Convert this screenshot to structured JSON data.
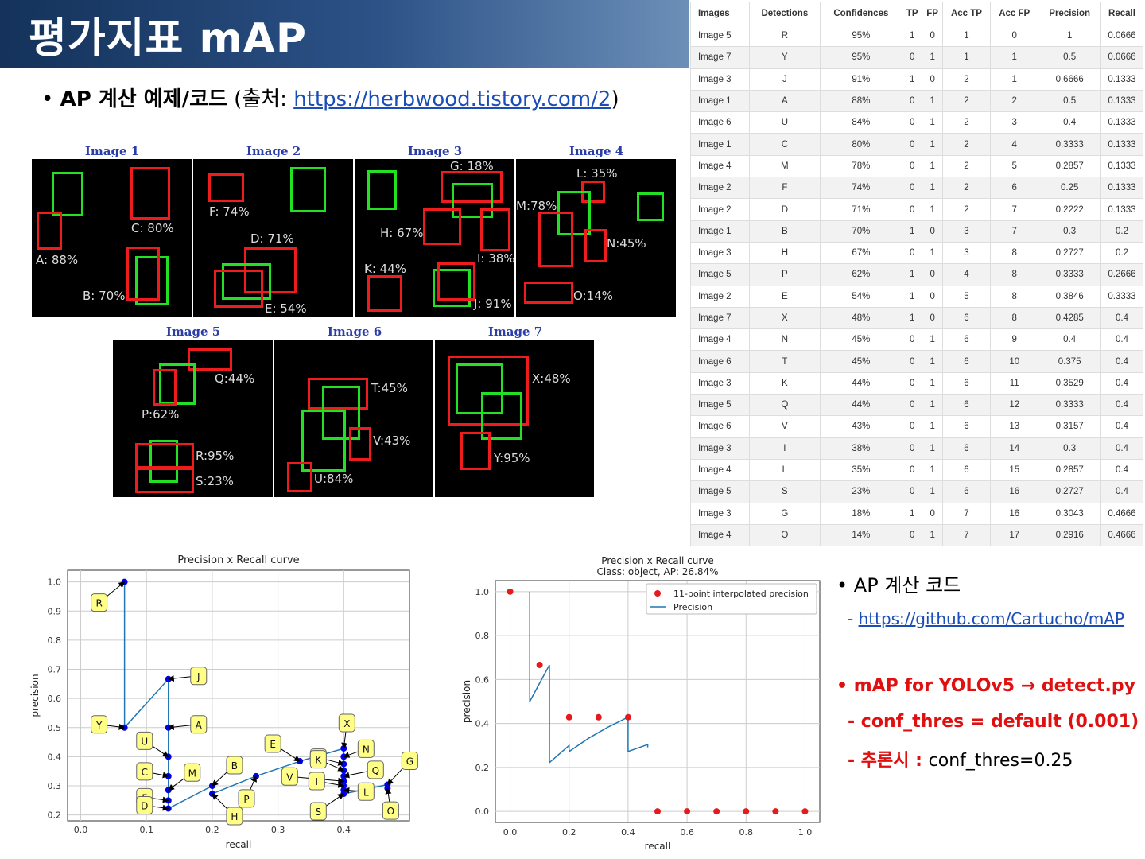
{
  "slide": {
    "title": "평가지표 mAP",
    "bullet1": {
      "bullet": "•",
      "bold": "AP 계산 예제/코드",
      "pre": " (출처: ",
      "link": "https://herbwood.tistory.com/2",
      "post": ")"
    },
    "right": {
      "b1": "• AP 계산 코드",
      "b1_dash": "- ",
      "b1_link": "https://github.com/Cartucho/mAP",
      "b2": "• mAP for YOLOv5 → detect.py",
      "b3": "- conf_thres = default (0.001)",
      "b4_red": "- 추론시 : ",
      "b4_black": "conf_thres=0.25"
    }
  },
  "images": [
    {
      "title": "Image 1",
      "labels": [
        "A: 88%",
        "B: 70%",
        "C: 80%"
      ]
    },
    {
      "title": "Image 2",
      "labels": [
        "F: 74%",
        "D: 71%",
        "E: 54%"
      ]
    },
    {
      "title": "Image 3",
      "labels": [
        "G: 18%",
        "H: 67%",
        "I: 38%",
        "K: 44%",
        "J: 91%"
      ]
    },
    {
      "title": "Image 4",
      "labels": [
        "L: 35%",
        "M:78%",
        "N:45%",
        "O:14%"
      ]
    },
    {
      "title": "Image 5",
      "labels": [
        "Q:44%",
        "P:62%",
        "R:95%",
        "S:23%"
      ]
    },
    {
      "title": "Image 6",
      "labels": [
        "T:45%",
        "V:43%",
        "U:84%"
      ]
    },
    {
      "title": "Image 7",
      "labels": [
        "X:48%",
        "Y:95%"
      ]
    }
  ],
  "table": {
    "headers": [
      "Images",
      "Detections",
      "Confidences",
      "TP",
      "FP",
      "Acc TP",
      "Acc FP",
      "Precision",
      "Recall"
    ],
    "rows": [
      [
        "Image 5",
        "R",
        "95%",
        "1",
        "0",
        "1",
        "0",
        "1",
        "0.0666"
      ],
      [
        "Image 7",
        "Y",
        "95%",
        "0",
        "1",
        "1",
        "1",
        "0.5",
        "0.0666"
      ],
      [
        "Image 3",
        "J",
        "91%",
        "1",
        "0",
        "2",
        "1",
        "0.6666",
        "0.1333"
      ],
      [
        "Image 1",
        "A",
        "88%",
        "0",
        "1",
        "2",
        "2",
        "0.5",
        "0.1333"
      ],
      [
        "Image 6",
        "U",
        "84%",
        "0",
        "1",
        "2",
        "3",
        "0.4",
        "0.1333"
      ],
      [
        "Image 1",
        "C",
        "80%",
        "0",
        "1",
        "2",
        "4",
        "0.3333",
        "0.1333"
      ],
      [
        "Image 4",
        "M",
        "78%",
        "0",
        "1",
        "2",
        "5",
        "0.2857",
        "0.1333"
      ],
      [
        "Image 2",
        "F",
        "74%",
        "0",
        "1",
        "2",
        "6",
        "0.25",
        "0.1333"
      ],
      [
        "Image 2",
        "D",
        "71%",
        "0",
        "1",
        "2",
        "7",
        "0.2222",
        "0.1333"
      ],
      [
        "Image 1",
        "B",
        "70%",
        "1",
        "0",
        "3",
        "7",
        "0.3",
        "0.2"
      ],
      [
        "Image 3",
        "H",
        "67%",
        "0",
        "1",
        "3",
        "8",
        "0.2727",
        "0.2"
      ],
      [
        "Image 5",
        "P",
        "62%",
        "1",
        "0",
        "4",
        "8",
        "0.3333",
        "0.2666"
      ],
      [
        "Image 2",
        "E",
        "54%",
        "1",
        "0",
        "5",
        "8",
        "0.3846",
        "0.3333"
      ],
      [
        "Image 7",
        "X",
        "48%",
        "1",
        "0",
        "6",
        "8",
        "0.4285",
        "0.4"
      ],
      [
        "Image 4",
        "N",
        "45%",
        "0",
        "1",
        "6",
        "9",
        "0.4",
        "0.4"
      ],
      [
        "Image 6",
        "T",
        "45%",
        "0",
        "1",
        "6",
        "10",
        "0.375",
        "0.4"
      ],
      [
        "Image 3",
        "K",
        "44%",
        "0",
        "1",
        "6",
        "11",
        "0.3529",
        "0.4"
      ],
      [
        "Image 5",
        "Q",
        "44%",
        "0",
        "1",
        "6",
        "12",
        "0.3333",
        "0.4"
      ],
      [
        "Image 6",
        "V",
        "43%",
        "0",
        "1",
        "6",
        "13",
        "0.3157",
        "0.4"
      ],
      [
        "Image 3",
        "I",
        "38%",
        "0",
        "1",
        "6",
        "14",
        "0.3",
        "0.4"
      ],
      [
        "Image 4",
        "L",
        "35%",
        "0",
        "1",
        "6",
        "15",
        "0.2857",
        "0.4"
      ],
      [
        "Image 5",
        "S",
        "23%",
        "0",
        "1",
        "6",
        "16",
        "0.2727",
        "0.4"
      ],
      [
        "Image 3",
        "G",
        "18%",
        "1",
        "0",
        "7",
        "16",
        "0.3043",
        "0.4666"
      ],
      [
        "Image 4",
        "O",
        "14%",
        "0",
        "1",
        "7",
        "17",
        "0.2916",
        "0.4666"
      ]
    ]
  },
  "chart_data": [
    {
      "type": "line",
      "title": "Precision x Recall curve",
      "xlabel": "recall",
      "ylabel": "precision",
      "xlim": [
        -0.02,
        0.5
      ],
      "ylim": [
        0.18,
        1.04
      ],
      "xticks": [
        "0.0",
        "0.1",
        "0.2",
        "0.3",
        "0.4"
      ],
      "yticks": [
        "0.2",
        "0.3",
        "0.4",
        "0.5",
        "0.6",
        "0.7",
        "0.8",
        "0.9",
        "1.0"
      ],
      "grid": true,
      "points": [
        {
          "label": "R",
          "x": 0.0666,
          "y": 1.0
        },
        {
          "label": "Y",
          "x": 0.0666,
          "y": 0.5
        },
        {
          "label": "J",
          "x": 0.1333,
          "y": 0.6666
        },
        {
          "label": "A",
          "x": 0.1333,
          "y": 0.5
        },
        {
          "label": "U",
          "x": 0.1333,
          "y": 0.4
        },
        {
          "label": "C",
          "x": 0.1333,
          "y": 0.3333
        },
        {
          "label": "M",
          "x": 0.1333,
          "y": 0.2857
        },
        {
          "label": "F",
          "x": 0.1333,
          "y": 0.25
        },
        {
          "label": "D",
          "x": 0.1333,
          "y": 0.2222
        },
        {
          "label": "B",
          "x": 0.2,
          "y": 0.3
        },
        {
          "label": "H",
          "x": 0.2,
          "y": 0.2727
        },
        {
          "label": "P",
          "x": 0.2666,
          "y": 0.3333
        },
        {
          "label": "E",
          "x": 0.3333,
          "y": 0.3846
        },
        {
          "label": "X",
          "x": 0.4,
          "y": 0.4285
        },
        {
          "label": "N",
          "x": 0.4,
          "y": 0.4
        },
        {
          "label": "T",
          "x": 0.4,
          "y": 0.375
        },
        {
          "label": "K",
          "x": 0.4,
          "y": 0.3529
        },
        {
          "label": "Q",
          "x": 0.4,
          "y": 0.3333
        },
        {
          "label": "V",
          "x": 0.4,
          "y": 0.3157
        },
        {
          "label": "I",
          "x": 0.4,
          "y": 0.3
        },
        {
          "label": "L",
          "x": 0.4,
          "y": 0.2857
        },
        {
          "label": "S",
          "x": 0.4,
          "y": 0.2727
        },
        {
          "label": "G",
          "x": 0.4666,
          "y": 0.3043
        },
        {
          "label": "O",
          "x": 0.4666,
          "y": 0.2916
        }
      ]
    },
    {
      "type": "line",
      "title": "Precision x Recall curve",
      "subtitle": "Class: object, AP: 26.84%",
      "xlabel": "recall",
      "ylabel": "precision",
      "xlim": [
        -0.05,
        1.05
      ],
      "ylim": [
        -0.05,
        1.05
      ],
      "xticks": [
        "0.0",
        "0.2",
        "0.4",
        "0.6",
        "0.8",
        "1.0"
      ],
      "yticks": [
        "0.0",
        "0.2",
        "0.4",
        "0.6",
        "0.8",
        "1.0"
      ],
      "grid": true,
      "legend_position": "top-right",
      "series": [
        {
          "name": "11-point interpolated precision",
          "kind": "scatter",
          "color": "#e41a1c",
          "x": [
            0.0,
            0.1,
            0.2,
            0.3,
            0.4,
            0.5,
            0.6,
            0.7,
            0.8,
            0.9,
            1.0
          ],
          "y": [
            1.0,
            0.6666,
            0.4285,
            0.4285,
            0.4285,
            0,
            0,
            0,
            0,
            0,
            0
          ]
        },
        {
          "name": "Precision",
          "kind": "line",
          "color": "#1f77b4",
          "x": [
            0.0666,
            0.0666,
            0.1333,
            0.1333,
            0.2,
            0.2,
            0.2666,
            0.3333,
            0.4,
            0.4,
            0.4666,
            0.4666
          ],
          "y": [
            1.0,
            0.5,
            0.6666,
            0.2222,
            0.3,
            0.2727,
            0.3333,
            0.3846,
            0.4285,
            0.2727,
            0.3043,
            0.2916
          ]
        }
      ]
    }
  ]
}
